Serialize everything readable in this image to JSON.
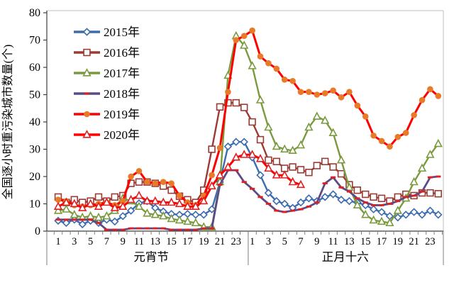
{
  "chart_data": {
    "type": "line",
    "title": "",
    "ylabel": "全国逐小时重污染城市数量(个)",
    "xlabel": "",
    "ylim": [
      0,
      80
    ],
    "y_ticks": [
      0,
      10,
      20,
      30,
      40,
      50,
      60,
      70,
      80
    ],
    "grid": false,
    "legend_position": "upper-left-inside",
    "x_axis": {
      "days": [
        {
          "label": "元宵节",
          "tick_labels": [
            "1",
            "3",
            "5",
            "7",
            "9",
            "11",
            "13",
            "15",
            "17",
            "19",
            "21",
            "23"
          ]
        },
        {
          "label": "正月十六",
          "tick_labels": [
            "1",
            "3",
            "5",
            "7",
            "9",
            "11",
            "13",
            "15",
            "17",
            "19",
            "21",
            "23"
          ]
        }
      ],
      "hours_per_day": 24
    },
    "series": [
      {
        "name": "2015年",
        "color": "#3C6CB0",
        "marker": "diamond-open",
        "marker_color": "#3C6CB0",
        "line_width": 2.4,
        "values": [
          3.8,
          3,
          4.2,
          2.5,
          3.8,
          3,
          4.2,
          3.5,
          5.5,
          7.5,
          10.2,
          11,
          8.5,
          7.2,
          6.3,
          6,
          6.3,
          6,
          6,
          8,
          18,
          31,
          32.7,
          32.7,
          27,
          20.5,
          14,
          11,
          10,
          8.5,
          10.5,
          12,
          11,
          12.5,
          13.5,
          11.5,
          11,
          10.5,
          9.5,
          8,
          7,
          5.5,
          5,
          6,
          7,
          6,
          7.5,
          6
        ]
      },
      {
        "name": "2016年",
        "color": "#9A3B34",
        "marker": "square-open",
        "marker_color": "#9A3B34",
        "line_width": 2.4,
        "values": [
          12.5,
          10.5,
          11.5,
          10.5,
          11,
          12.5,
          11,
          12.5,
          13,
          17.5,
          18,
          18,
          17.5,
          16.5,
          15,
          12.8,
          11.5,
          10.5,
          15,
          30,
          45.5,
          47,
          47,
          45.3,
          40,
          33.5,
          26,
          25.5,
          23,
          23.5,
          22.5,
          21.5,
          24,
          25.5,
          23.5,
          21,
          17,
          15,
          13.5,
          12.5,
          12,
          11,
          12.5,
          13.5,
          13,
          14,
          14,
          13.7
        ]
      },
      {
        "name": "2017年",
        "color": "#7A9A3E",
        "marker": "triangle-open",
        "marker_color": "#7A9A3E",
        "line_width": 2.4,
        "values": [
          7.5,
          8,
          6,
          5,
          5.5,
          5,
          5.5,
          7.5,
          12,
          11,
          9,
          6.5,
          6,
          5.5,
          4.5,
          4,
          3.5,
          3,
          1.5,
          1.5,
          18,
          57,
          71.5,
          68,
          60.5,
          48,
          38,
          31,
          30,
          29.5,
          31.5,
          38,
          42,
          40.5,
          36,
          26,
          16,
          9.5,
          6,
          4,
          3.5,
          3,
          7.5,
          12,
          18,
          23,
          28,
          32
        ]
      },
      {
        "name": "2018年",
        "color": "#5B4A87",
        "marker": "dash",
        "marker_color": "#E02020",
        "line_width": 2.8,
        "values": [
          4.2,
          4.2,
          4.2,
          4.2,
          4.2,
          3,
          0.5,
          0.5,
          0.5,
          1,
          1,
          1,
          1,
          1,
          0.5,
          0.5,
          0.5,
          0.5,
          1,
          1,
          17,
          22.3,
          22.3,
          18,
          15.5,
          12.5,
          10,
          7.5,
          7,
          7.5,
          8,
          9,
          10.5,
          17.5,
          19.7,
          16,
          14.5,
          12,
          10.5,
          9.5,
          9.5,
          10,
          11,
          12.5,
          13,
          14.5,
          19.7,
          20
        ]
      },
      {
        "name": "2019年",
        "color": "#FF0000",
        "marker": "circle-filled",
        "marker_color": "#E87A28",
        "line_width": 3,
        "values": [
          11.5,
          11,
          9.5,
          9,
          9.5,
          10,
          10.5,
          9.5,
          11,
          20,
          22,
          18,
          17.5,
          18,
          17.5,
          13,
          10.5,
          9.5,
          13,
          20.5,
          30.5,
          51,
          70,
          71.5,
          73.5,
          64,
          61.5,
          59.5,
          55.5,
          55,
          51,
          51,
          50,
          50.5,
          51.5,
          49,
          51,
          46,
          42,
          35,
          33,
          31,
          34.5,
          36,
          42.5,
          48,
          52,
          49.5
        ]
      },
      {
        "name": "2020年",
        "color": "#FF0000",
        "marker": "triangle-open",
        "marker_color": "#E02020",
        "line_width": 3,
        "values": [
          9,
          10.5,
          10,
          8.5,
          10,
          9,
          10.5,
          8.5,
          9,
          11.5,
          13,
          11,
          11,
          10.5,
          10.5,
          10,
          9,
          9,
          11,
          16.5,
          20.5,
          23.5,
          27,
          28,
          28,
          26.5,
          23,
          20.5,
          20.5,
          18,
          17
        ]
      }
    ]
  }
}
